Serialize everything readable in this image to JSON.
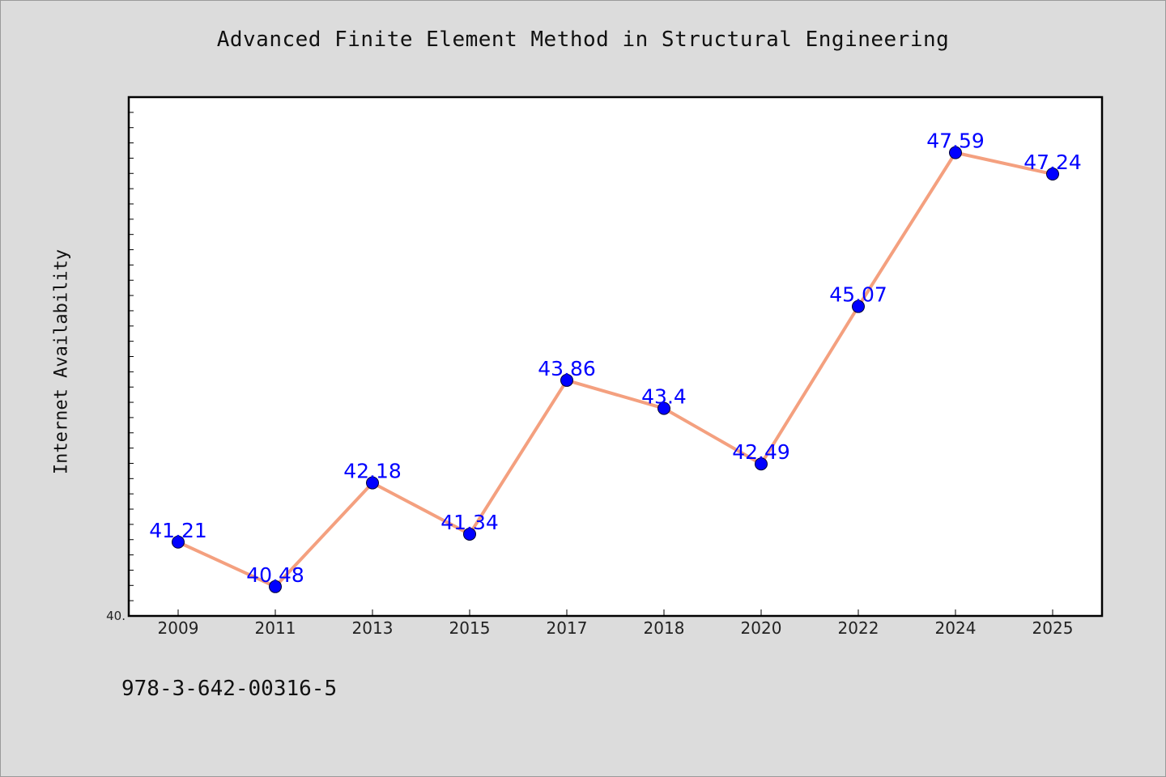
{
  "title": "Advanced Finite Element Method in Structural Engineering",
  "footer_text": "978-3-642-00316-5",
  "colors": {
    "background": "#dcdcdc",
    "plot_background": "#ffffff",
    "line": "#f4a07f",
    "marker": "#0000ff",
    "label": "#0000ff"
  },
  "chart_data": {
    "type": "line",
    "title": "Advanced Finite Element Method in Structural Engineering",
    "xlabel": "",
    "ylabel": "Internet Availability",
    "categories": [
      "2009",
      "2011",
      "2013",
      "2015",
      "2017",
      "2018",
      "2020",
      "2022",
      "2024",
      "2025"
    ],
    "series": [
      {
        "values": [
          41.21,
          40.48,
          42.18,
          41.34,
          43.86,
          43.4,
          42.49,
          45.07,
          47.59,
          47.24
        ]
      }
    ],
    "data_labels": [
      "41.21",
      "40.48",
      "42.18",
      "41.34",
      "43.86",
      "43.4",
      "42.49",
      "45.07",
      "47.59",
      "47.24"
    ],
    "ylim": [
      40.0,
      48.5
    ],
    "y_tick_labels": [
      "40."
    ],
    "grid": false,
    "legend": "none"
  }
}
